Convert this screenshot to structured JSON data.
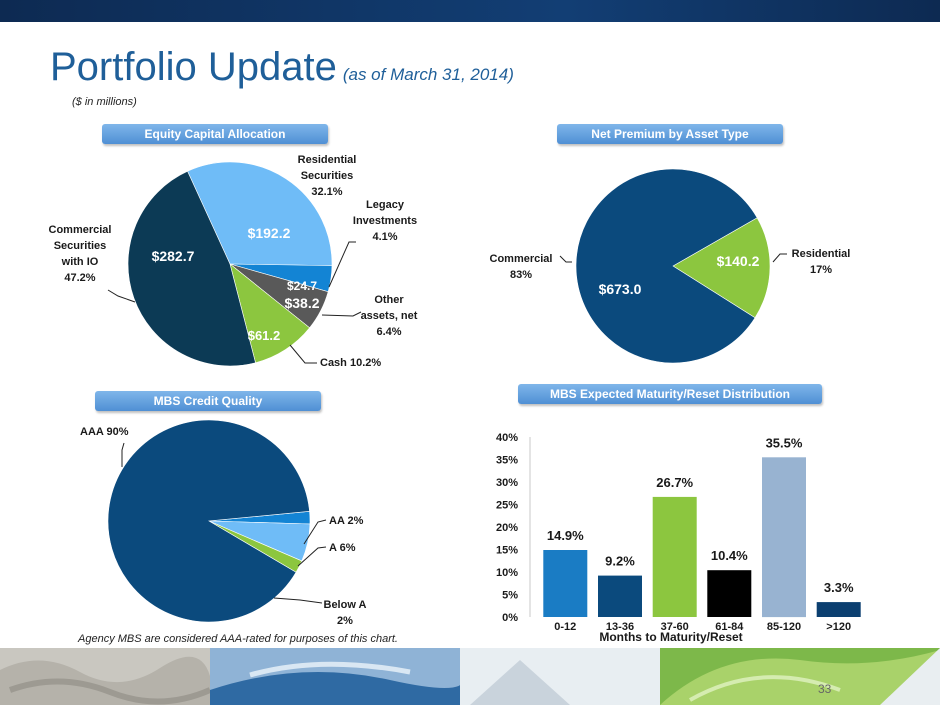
{
  "header": {
    "title": "Portfolio Update",
    "subtitle": "(as of March 31, 2014)",
    "units": "($ in millions)"
  },
  "colors": {
    "navy": "#0b4a7d",
    "light_blue": "#6fbcf7",
    "mid_blue": "#1384d4",
    "gray": "#5a5a5a",
    "green": "#8cc63f",
    "dark_teal": "#0c3a55",
    "bar_blue": "#1a7cc4",
    "bar_navy": "#0b4a7d",
    "bar_green": "#8cc63f",
    "bar_black": "#000000",
    "bar_lightblue": "#98b3d1",
    "bar_darkblue": "#0b3f70"
  },
  "footnote": "Agency MBS are considered AAA-rated for purposes of this chart.",
  "page_number": "33",
  "chart_data": [
    {
      "type": "pie",
      "title": "Equity Capital Allocation",
      "slices": [
        {
          "name": "Residential Securities",
          "value": 192.2,
          "value_label": "$192.2",
          "pct_label": "32.1%",
          "color": "#6fbcf7"
        },
        {
          "name": "Legacy Investments",
          "value": 24.7,
          "value_label": "$24.7",
          "pct_label": "4.1%",
          "color": "#1384d4"
        },
        {
          "name": "Other assets, net",
          "value": 38.2,
          "value_label": "$38.2",
          "pct_label": "6.4%",
          "color": "#595959"
        },
        {
          "name": "Cash",
          "value": 61.2,
          "value_label": "$61.2",
          "pct_label": "10.2%",
          "color": "#8cc63f"
        },
        {
          "name": "Commercial Securities with IO",
          "value": 282.7,
          "value_label": "$282.7",
          "pct_label": "47.2%",
          "color": "#0c3a55"
        }
      ],
      "labels": {
        "residential": [
          "Residential",
          "Securities",
          "32.1%"
        ],
        "legacy": [
          "Legacy",
          "Investments",
          "4.1%"
        ],
        "other": [
          "Other",
          "assets, net",
          "6.4%"
        ],
        "cash": "Cash 10.2%",
        "commercial": [
          "Commercial",
          "Securities",
          "with IO",
          "47.2%"
        ]
      }
    },
    {
      "type": "pie",
      "title": "Net Premium by Asset Type",
      "slices": [
        {
          "name": "Residential",
          "value": 140.2,
          "value_label": "$140.2",
          "pct_label": "17%",
          "color": "#8cc63f"
        },
        {
          "name": "Commercial",
          "value": 673.0,
          "value_label": "$673.0",
          "pct_label": "83%",
          "color": "#0b4a7d"
        }
      ],
      "labels": {
        "residential": [
          "Residential",
          "17%"
        ],
        "commercial": [
          "Commercial",
          "83%"
        ]
      }
    },
    {
      "type": "pie",
      "title": "MBS Credit Quality",
      "slices": [
        {
          "name": "AA",
          "value": 2,
          "color": "#1384d4"
        },
        {
          "name": "A",
          "value": 6,
          "color": "#6fbcf7"
        },
        {
          "name": "Below A",
          "value": 2,
          "color": "#8cc63f"
        },
        {
          "name": "AAA",
          "value": 90,
          "color": "#0b4a7d"
        }
      ],
      "labels": {
        "aaa": "AAA 90%",
        "aa": "AA 2%",
        "a": "A 6%",
        "below_a": [
          "Below A",
          "2%"
        ]
      }
    },
    {
      "type": "bar",
      "title": "MBS Expected Maturity/Reset Distribution",
      "categories": [
        "0-12",
        "13-36",
        "37-60",
        "61-84",
        "85-120",
        ">120"
      ],
      "values": [
        14.9,
        9.2,
        26.7,
        10.4,
        35.5,
        3.3
      ],
      "value_labels": [
        "14.9%",
        "9.2%",
        "26.7%",
        "10.4%",
        "35.5%",
        "3.3%"
      ],
      "bar_colors": [
        "#1a7cc4",
        "#0b4a7d",
        "#8cc63f",
        "#000000",
        "#98b3d1",
        "#0b3f70"
      ],
      "xlabel": "Months to Maturity/Reset",
      "ylabel": "",
      "ylim": [
        0,
        40
      ],
      "yticks": [
        0,
        5,
        10,
        15,
        20,
        25,
        30,
        35,
        40
      ],
      "ytick_labels": [
        "0%",
        "5%",
        "10%",
        "15%",
        "20%",
        "25%",
        "30%",
        "35%",
        "40%"
      ]
    }
  ]
}
